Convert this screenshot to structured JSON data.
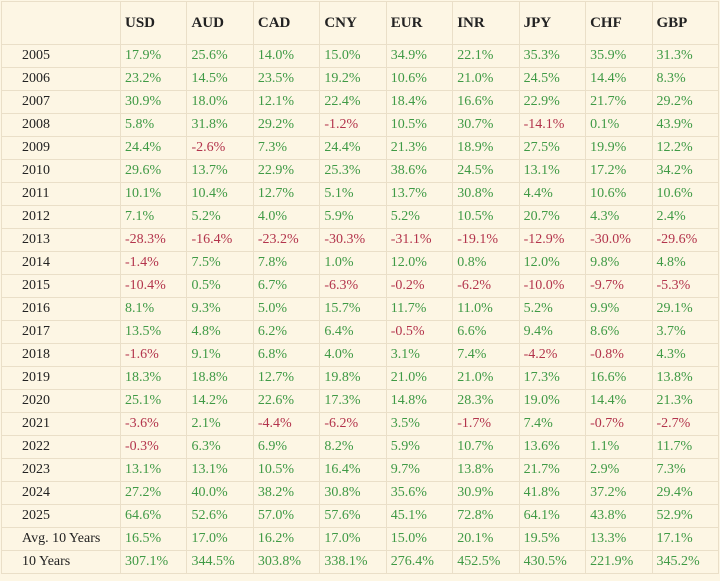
{
  "table": {
    "colors": {
      "positive": "#3f9a45",
      "negative": "#b3344c"
    },
    "header": [
      "USD",
      "AUD",
      "CAD",
      "CNY",
      "EUR",
      "INR",
      "JPY",
      "CHF",
      "GBP"
    ],
    "rows": [
      [
        "2005",
        "17.9%",
        "25.6%",
        "14.0%",
        "15.0%",
        "34.9%",
        "22.1%",
        "35.3%",
        "35.9%",
        "31.3%"
      ],
      [
        "2006",
        "23.2%",
        "14.5%",
        "23.5%",
        "19.2%",
        "10.6%",
        "21.0%",
        "24.5%",
        "14.4%",
        "8.3%"
      ],
      [
        "2007",
        "30.9%",
        "18.0%",
        "12.1%",
        "22.4%",
        "18.4%",
        "16.6%",
        "22.9%",
        "21.7%",
        "29.2%"
      ],
      [
        "2008",
        "5.8%",
        "31.8%",
        "29.2%",
        "-1.2%",
        "10.5%",
        "30.7%",
        "-14.1%",
        "0.1%",
        "43.9%"
      ],
      [
        "2009",
        "24.4%",
        "-2.6%",
        "7.3%",
        "24.4%",
        "21.3%",
        "18.9%",
        "27.5%",
        "19.9%",
        "12.2%"
      ],
      [
        "2010",
        "29.6%",
        "13.7%",
        "22.9%",
        "25.3%",
        "38.6%",
        "24.5%",
        "13.1%",
        "17.2%",
        "34.2%"
      ],
      [
        "2011",
        "10.1%",
        "10.4%",
        "12.7%",
        "5.1%",
        "13.7%",
        "30.8%",
        "4.4%",
        "10.6%",
        "10.6%"
      ],
      [
        "2012",
        "7.1%",
        "5.2%",
        "4.0%",
        "5.9%",
        "5.2%",
        "10.5%",
        "20.7%",
        "4.3%",
        "2.4%"
      ],
      [
        "2013",
        "-28.3%",
        "-16.4%",
        "-23.2%",
        "-30.3%",
        "-31.1%",
        "-19.1%",
        "-12.9%",
        "-30.0%",
        "-29.6%"
      ],
      [
        "2014",
        "-1.4%",
        "7.5%",
        "7.8%",
        "1.0%",
        "12.0%",
        "0.8%",
        "12.0%",
        "9.8%",
        "4.8%"
      ],
      [
        "2015",
        "-10.4%",
        "0.5%",
        "6.7%",
        "-6.3%",
        "-0.2%",
        "-6.2%",
        "-10.0%",
        "-9.7%",
        "-5.3%"
      ],
      [
        "2016",
        "8.1%",
        "9.3%",
        "5.0%",
        "15.7%",
        "11.7%",
        "11.0%",
        "5.2%",
        "9.9%",
        "29.1%"
      ],
      [
        "2017",
        "13.5%",
        "4.8%",
        "6.2%",
        "6.4%",
        "-0.5%",
        "6.6%",
        "9.4%",
        "8.6%",
        "3.7%"
      ],
      [
        "2018",
        "-1.6%",
        "9.1%",
        "6.8%",
        "4.0%",
        "3.1%",
        "7.4%",
        "-4.2%",
        "-0.8%",
        "4.3%"
      ],
      [
        "2019",
        "18.3%",
        "18.8%",
        "12.7%",
        "19.8%",
        "21.0%",
        "21.0%",
        "17.3%",
        "16.6%",
        "13.8%"
      ],
      [
        "2020",
        "25.1%",
        "14.2%",
        "22.6%",
        "17.3%",
        "14.8%",
        "28.3%",
        "19.0%",
        "14.4%",
        "21.3%"
      ],
      [
        "2021",
        "-3.6%",
        "2.1%",
        "-4.4%",
        "-6.2%",
        "3.5%",
        "-1.7%",
        "7.4%",
        "-0.7%",
        "-2.7%"
      ],
      [
        "2022",
        "-0.3%",
        "6.3%",
        "6.9%",
        "8.2%",
        "5.9%",
        "10.7%",
        "13.6%",
        "1.1%",
        "11.7%"
      ],
      [
        "2023",
        "13.1%",
        "13.1%",
        "10.5%",
        "16.4%",
        "9.7%",
        "13.8%",
        "21.7%",
        "2.9%",
        "7.3%"
      ],
      [
        "2024",
        "27.2%",
        "40.0%",
        "38.2%",
        "30.8%",
        "35.6%",
        "30.9%",
        "41.8%",
        "37.2%",
        "29.4%"
      ],
      [
        "2025",
        "64.6%",
        "52.6%",
        "57.0%",
        "57.6%",
        "45.1%",
        "72.8%",
        "64.1%",
        "43.8%",
        "52.9%"
      ],
      [
        "Avg. 10 Years",
        "16.5%",
        "17.0%",
        "16.2%",
        "17.0%",
        "15.0%",
        "20.1%",
        "19.5%",
        "13.3%",
        "17.1%"
      ],
      [
        "10 Years",
        "307.1%",
        "344.5%",
        "303.8%",
        "338.1%",
        "276.4%",
        "452.5%",
        "430.5%",
        "221.9%",
        "345.2%"
      ]
    ]
  }
}
